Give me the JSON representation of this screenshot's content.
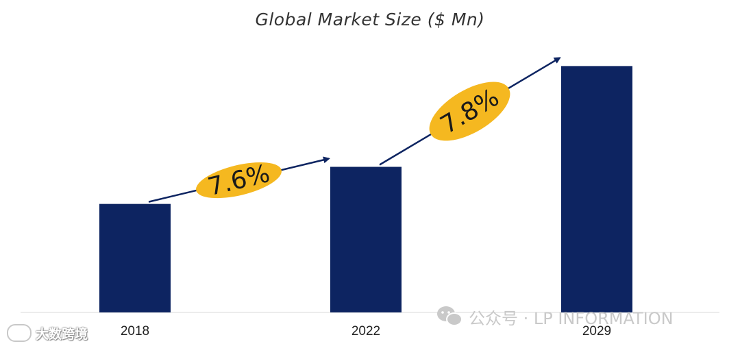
{
  "chart_data": {
    "type": "bar",
    "title": "Global Market Size ($ Mn)",
    "categories": [
      "2018",
      "2022",
      "2029"
    ],
    "values": [
      155,
      208,
      352
    ],
    "ylim": [
      0,
      370
    ],
    "grid": false,
    "bar_color": "#0d2461",
    "annotations": [
      {
        "text": "7.6%",
        "from": "2018",
        "to": "2022",
        "badge_color": "#f5b820"
      },
      {
        "text": "7.8%",
        "from": "2022",
        "to": "2029",
        "badge_color": "#f5b820"
      }
    ],
    "arrow_color": "#0d2461"
  },
  "watermarks": {
    "left_text": "大数跨境",
    "right_text": "公众号 · LP INFORMATION",
    "color": "#c9c9c9"
  }
}
